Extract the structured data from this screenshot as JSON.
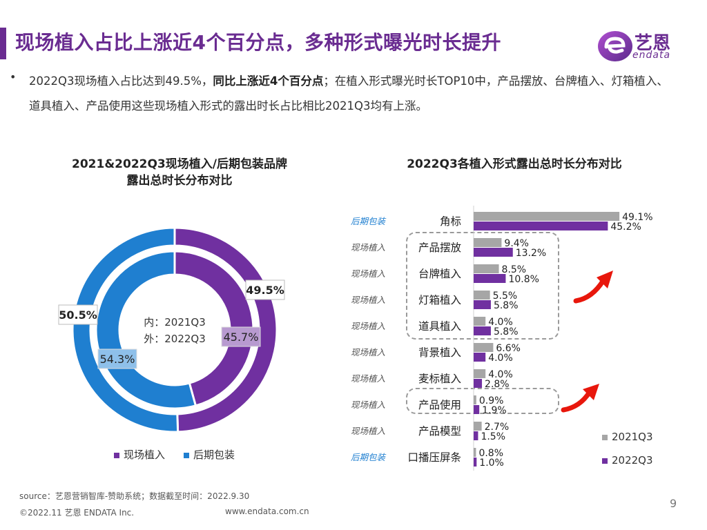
{
  "page": {
    "title": "现场植入占比上涨近4个百分点，多种形式曝光时长提升",
    "logo_text": "艺恩",
    "logo_sub": "endata",
    "bullet": "•",
    "summary_pre": "2022Q3现场植入占比达到49.5%，",
    "summary_bold": "同比上涨近4个百分点",
    "summary_post": "；在植入形式曝光时长TOP10中，产品摆放、台牌植入、灯箱植入、道具植入、产品使用这些现场植入形式的露出时长占比相比2021Q3均有上涨。",
    "source": "source：艺恩营销智库-赞助系统；数据截至时间：2022.9.30",
    "copyright": "©2022.11 艺恩 ENDATA Inc.",
    "website": "www.endata.com.cn",
    "page_number": "9"
  },
  "colors": {
    "purple": "#7030a0",
    "blue": "#1f7fd0",
    "gray": "#a6a6a6",
    "red": "#e8170c"
  },
  "chart_data": [
    {
      "type": "pie",
      "variant": "nested-donut",
      "title_line1": "2021&2022Q3现场植入/后期包装品牌",
      "title_line2": "露出总时长分布对比",
      "center_inner": "内：2021Q3",
      "center_outer": "外：2022Q3",
      "categories": [
        "现场植入",
        "后期包装"
      ],
      "series": [
        {
          "name": "2021Q3",
          "ring": "inner",
          "values": [
            45.7,
            54.3
          ],
          "labels": [
            "45.7%",
            "54.3%"
          ]
        },
        {
          "name": "2022Q3",
          "ring": "outer",
          "values": [
            49.5,
            50.5
          ],
          "labels": [
            "49.5%",
            "50.5%"
          ]
        }
      ],
      "legend": [
        "现场植入",
        "后期包装"
      ],
      "legend_position": "bottom"
    },
    {
      "type": "bar",
      "orientation": "horizontal",
      "title": "2022Q3各植入形式露出总时长分布对比",
      "categories": [
        "角标",
        "产品摆放",
        "台牌植入",
        "灯箱植入",
        "道具植入",
        "背景植入",
        "麦标植入",
        "产品使用",
        "产品模型",
        "口播压屏条"
      ],
      "groups": [
        "后期包装",
        "现场植入",
        "现场植入",
        "现场植入",
        "现场植入",
        "现场植入",
        "现场植入",
        "现场植入",
        "现场植入",
        "后期包装"
      ],
      "series": [
        {
          "name": "2021Q3",
          "values": [
            49.1,
            9.4,
            8.5,
            5.5,
            4.0,
            6.6,
            4.0,
            0.9,
            2.7,
            0.8
          ],
          "labels": [
            "49.1%",
            "9.4%",
            "8.5%",
            "5.5%",
            "4.0%",
            "6.6%",
            "4.0%",
            "0.9%",
            "2.7%",
            "0.8%"
          ]
        },
        {
          "name": "2022Q3",
          "values": [
            45.2,
            13.2,
            10.8,
            5.8,
            5.8,
            4.0,
            2.8,
            1.9,
            1.5,
            1.0
          ],
          "labels": [
            "45.2%",
            "13.2%",
            "10.8%",
            "5.8%",
            "5.8%",
            "4.0%",
            "2.8%",
            "1.9%",
            "1.5%",
            "1.0%"
          ]
        }
      ],
      "legend_position": "bottom-right"
    }
  ]
}
